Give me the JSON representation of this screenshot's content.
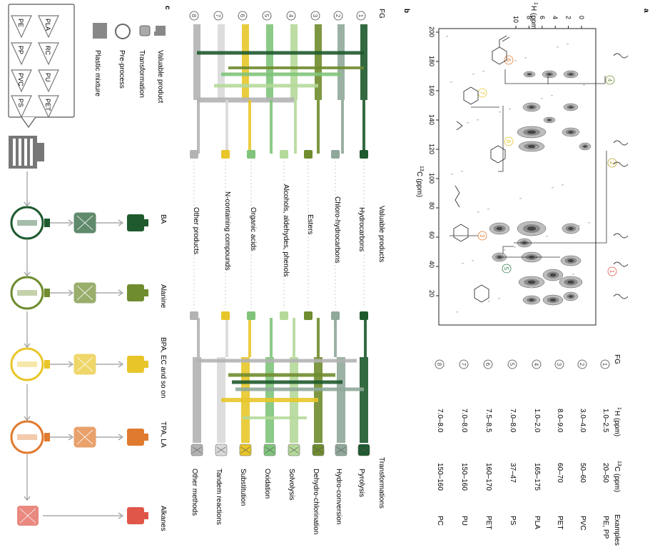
{
  "panels": {
    "a": "a",
    "b": "b",
    "c": "c"
  },
  "table": {
    "headers": [
      "FG",
      "1H (ppm)",
      "13C (ppm)",
      "Examples"
    ],
    "header_parts": {
      "fg": "FG",
      "h_sup": "1",
      "h_rest": "H (ppm)",
      "c_sup": "13",
      "c_rest": "C (ppm)",
      "ex": "Examples"
    },
    "rows": [
      {
        "n": "1",
        "h": "1.0–2.5",
        "c": "20–50",
        "ex": "PE, PP"
      },
      {
        "n": "2",
        "h": "3.0–4.0",
        "c": "50–60",
        "ex": "PVC"
      },
      {
        "n": "3",
        "h": "8.0–9.0",
        "c": "60–70",
        "ex": "PET"
      },
      {
        "n": "4",
        "h": "1.0–2.0",
        "c": "165–175",
        "ex": "PLA"
      },
      {
        "n": "5",
        "h": "7.0–8.0",
        "c": "37–47",
        "ex": "PS"
      },
      {
        "n": "6",
        "h": "7.5–8.5",
        "c": "160–170",
        "ex": "PET"
      },
      {
        "n": "7",
        "h": "7.0–8.0",
        "c": "150–160",
        "ex": "PU"
      },
      {
        "n": "8",
        "h": "7.0–8.0",
        "c": "150–160",
        "ex": "PC"
      }
    ]
  },
  "nmr": {
    "h_axis_sup": "1",
    "h_axis_rest": "H (ppm)",
    "c_axis_sup": "13",
    "c_axis_rest": "C (ppm)",
    "h_ticks": [
      "10",
      "8",
      "6",
      "4",
      "2",
      "0"
    ],
    "c_ticks": [
      "200",
      "180",
      "160",
      "140",
      "120",
      "100",
      "80",
      "60",
      "40",
      "20"
    ],
    "markers": [
      "4",
      "6",
      "7",
      "8",
      "2",
      "3",
      "5",
      "1"
    ]
  },
  "flow": {
    "fg_header": "FG",
    "fg_numbers": [
      "1",
      "2",
      "3",
      "4",
      "5",
      "6",
      "7",
      "8"
    ],
    "products_header": "Valuable products",
    "products": [
      "Hydrocarbons",
      "Chloro-hydrocarbons",
      "Esters",
      "Alcohols, aldehydes, phenols",
      "Organic acids",
      "N-containing compounds",
      "Other products"
    ],
    "transformations_header": "Transformations",
    "transformations": [
      "Pyrolysis",
      "Hydro-conversion",
      "Dehydro-chlorination",
      "Solvolysis",
      "Oxidation",
      "Substitution",
      "Tandem reactions",
      "Other methods"
    ],
    "colors": [
      "#1e5a2e",
      "#8fa899",
      "#6f8c2e",
      "#b5d99a",
      "#7fc47a",
      "#e8c62a",
      "#d9d9d9",
      "#b3b3b3"
    ]
  },
  "legend": {
    "valuable_product": "Valuable product",
    "transformation": "Transformation",
    "preprocess": "Pre-process",
    "plastic_mixture": "Plastic mixture",
    "plastics": [
      "PLA",
      "PE",
      "RC",
      "PP",
      "PU",
      "PVC",
      "PET",
      "PS"
    ]
  },
  "pipeline": {
    "products": [
      "BA",
      "Alanine",
      "BPA, EC and so on",
      "TPA, LA",
      "Alkanes"
    ],
    "colors": [
      "#1e5a2e",
      "#6f8c2e",
      "#e8c62a",
      "#e07a2e",
      "#e0574a"
    ]
  }
}
